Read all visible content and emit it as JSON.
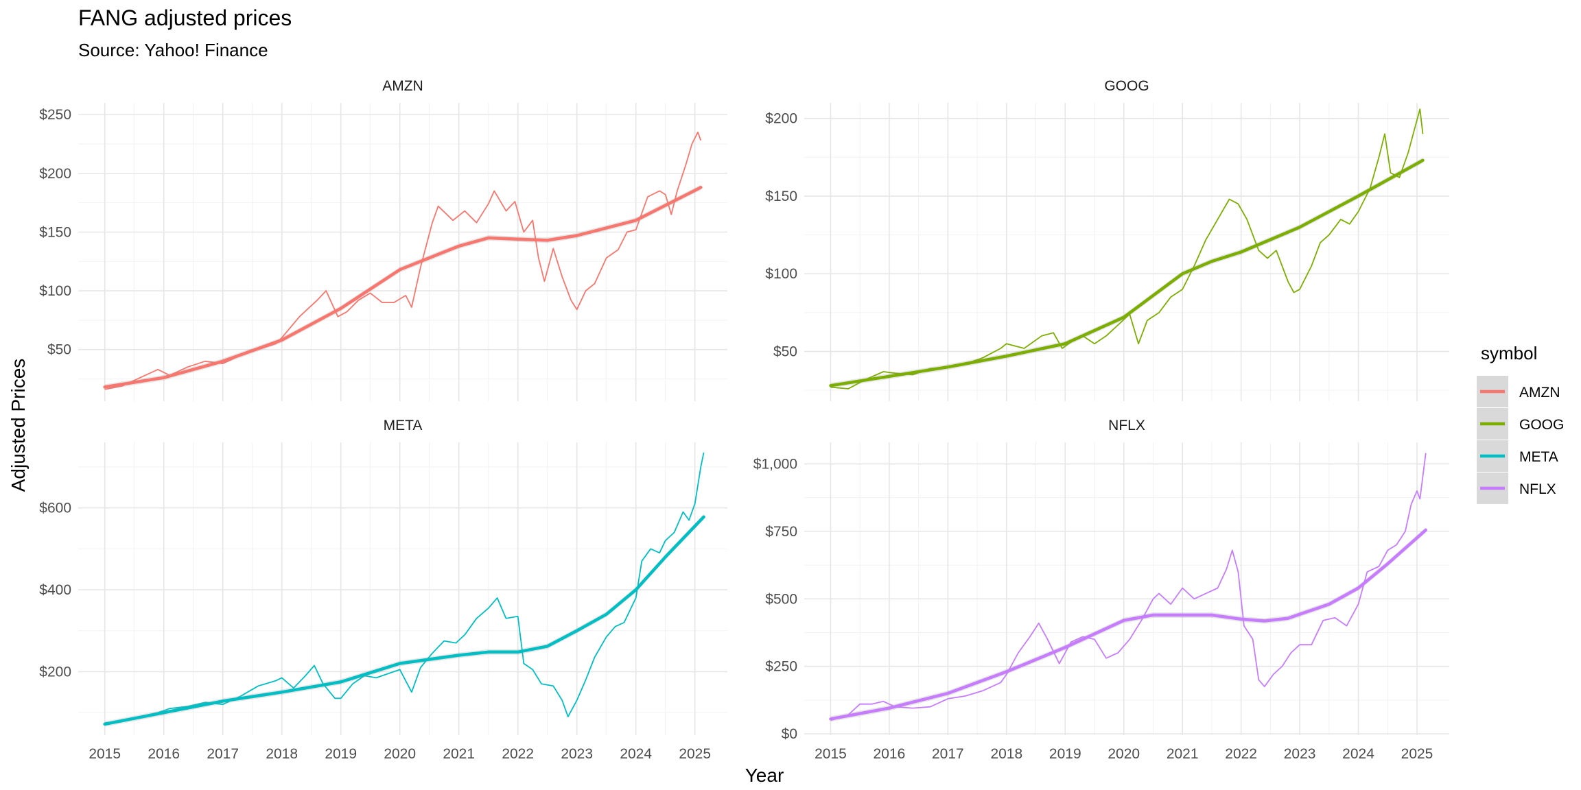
{
  "chart_data": {
    "type": "line",
    "title": "FANG adjusted prices",
    "subtitle": "Source: Yahoo! Finance",
    "xlabel": "Year",
    "ylabel": "Adjusted Prices",
    "legend": {
      "title": "symbol",
      "position": "right"
    },
    "grid": true,
    "x_ticks": [
      "2015",
      "2016",
      "2017",
      "2018",
      "2019",
      "2020",
      "2021",
      "2022",
      "2023",
      "2024",
      "2025"
    ],
    "xlim": [
      2014.55,
      2025.55
    ],
    "panels": [
      {
        "symbol": "AMZN",
        "color": "#F8766D",
        "ylim": [
          6,
          260
        ],
        "y_ticks": [
          50,
          100,
          150,
          200,
          250
        ],
        "y_tick_labels": [
          "$50",
          "$100",
          "$150",
          "$200",
          "$250"
        ],
        "price": [
          [
            2015.0,
            16
          ],
          [
            2015.3,
            19
          ],
          [
            2015.6,
            26
          ],
          [
            2015.9,
            33
          ],
          [
            2016.1,
            28
          ],
          [
            2016.4,
            35
          ],
          [
            2016.7,
            40
          ],
          [
            2017.0,
            38
          ],
          [
            2017.3,
            45
          ],
          [
            2017.6,
            50
          ],
          [
            2017.9,
            55
          ],
          [
            2018.0,
            60
          ],
          [
            2018.3,
            78
          ],
          [
            2018.6,
            92
          ],
          [
            2018.75,
            100
          ],
          [
            2018.95,
            78
          ],
          [
            2019.1,
            82
          ],
          [
            2019.3,
            92
          ],
          [
            2019.5,
            98
          ],
          [
            2019.7,
            90
          ],
          [
            2019.9,
            90
          ],
          [
            2020.1,
            96
          ],
          [
            2020.2,
            86
          ],
          [
            2020.35,
            120
          ],
          [
            2020.55,
            158
          ],
          [
            2020.65,
            172
          ],
          [
            2020.9,
            160
          ],
          [
            2021.1,
            168
          ],
          [
            2021.3,
            158
          ],
          [
            2021.5,
            174
          ],
          [
            2021.6,
            185
          ],
          [
            2021.8,
            168
          ],
          [
            2021.95,
            176
          ],
          [
            2022.1,
            150
          ],
          [
            2022.25,
            160
          ],
          [
            2022.35,
            128
          ],
          [
            2022.45,
            108
          ],
          [
            2022.6,
            136
          ],
          [
            2022.75,
            112
          ],
          [
            2022.9,
            92
          ],
          [
            2023.0,
            84
          ],
          [
            2023.15,
            100
          ],
          [
            2023.3,
            106
          ],
          [
            2023.5,
            128
          ],
          [
            2023.7,
            135
          ],
          [
            2023.85,
            150
          ],
          [
            2024.0,
            152
          ],
          [
            2024.2,
            180
          ],
          [
            2024.4,
            185
          ],
          [
            2024.5,
            182
          ],
          [
            2024.6,
            165
          ],
          [
            2024.7,
            185
          ],
          [
            2024.85,
            208
          ],
          [
            2024.95,
            225
          ],
          [
            2025.05,
            235
          ],
          [
            2025.1,
            228
          ]
        ],
        "trend": [
          [
            2015.0,
            18
          ],
          [
            2016.0,
            26
          ],
          [
            2017.0,
            40
          ],
          [
            2018.0,
            58
          ],
          [
            2019.0,
            85
          ],
          [
            2020.0,
            118
          ],
          [
            2021.0,
            138
          ],
          [
            2021.5,
            145
          ],
          [
            2022.0,
            144
          ],
          [
            2022.5,
            143
          ],
          [
            2023.0,
            147
          ],
          [
            2024.0,
            160
          ],
          [
            2025.1,
            188
          ]
        ]
      },
      {
        "symbol": "GOOG",
        "color": "#7CAE00",
        "ylim": [
          18,
          210
        ],
        "y_ticks": [
          50,
          100,
          150,
          200
        ],
        "y_tick_labels": [
          "$50",
          "$100",
          "$150",
          "$200"
        ],
        "price": [
          [
            2015.0,
            27
          ],
          [
            2015.3,
            26
          ],
          [
            2015.6,
            32
          ],
          [
            2015.9,
            37
          ],
          [
            2016.1,
            36
          ],
          [
            2016.4,
            35
          ],
          [
            2016.7,
            39
          ],
          [
            2017.0,
            40
          ],
          [
            2017.3,
            42
          ],
          [
            2017.6,
            46
          ],
          [
            2017.9,
            52
          ],
          [
            2018.0,
            55
          ],
          [
            2018.3,
            52
          ],
          [
            2018.6,
            60
          ],
          [
            2018.8,
            62
          ],
          [
            2018.95,
            52
          ],
          [
            2019.1,
            56
          ],
          [
            2019.3,
            60
          ],
          [
            2019.5,
            55
          ],
          [
            2019.7,
            60
          ],
          [
            2019.9,
            67
          ],
          [
            2020.1,
            74
          ],
          [
            2020.25,
            55
          ],
          [
            2020.4,
            70
          ],
          [
            2020.6,
            75
          ],
          [
            2020.8,
            85
          ],
          [
            2021.0,
            90
          ],
          [
            2021.2,
            105
          ],
          [
            2021.4,
            122
          ],
          [
            2021.6,
            135
          ],
          [
            2021.8,
            148
          ],
          [
            2021.95,
            145
          ],
          [
            2022.1,
            135
          ],
          [
            2022.3,
            115
          ],
          [
            2022.45,
            110
          ],
          [
            2022.6,
            115
          ],
          [
            2022.8,
            95
          ],
          [
            2022.9,
            88
          ],
          [
            2023.0,
            90
          ],
          [
            2023.2,
            105
          ],
          [
            2023.35,
            120
          ],
          [
            2023.5,
            125
          ],
          [
            2023.7,
            135
          ],
          [
            2023.85,
            132
          ],
          [
            2024.0,
            140
          ],
          [
            2024.2,
            155
          ],
          [
            2024.35,
            175
          ],
          [
            2024.45,
            190
          ],
          [
            2024.55,
            165
          ],
          [
            2024.7,
            162
          ],
          [
            2024.85,
            178
          ],
          [
            2024.95,
            192
          ],
          [
            2025.05,
            206
          ],
          [
            2025.1,
            190
          ]
        ],
        "trend": [
          [
            2015.0,
            28
          ],
          [
            2016.0,
            34
          ],
          [
            2017.0,
            40
          ],
          [
            2018.0,
            47
          ],
          [
            2019.0,
            55
          ],
          [
            2020.0,
            72
          ],
          [
            2021.0,
            100
          ],
          [
            2021.5,
            108
          ],
          [
            2022.0,
            114
          ],
          [
            2023.0,
            130
          ],
          [
            2024.0,
            150
          ],
          [
            2025.1,
            173
          ]
        ]
      },
      {
        "symbol": "META",
        "color": "#00BFC4",
        "ylim": [
          45,
          760
        ],
        "y_ticks": [
          200,
          400,
          600
        ],
        "y_tick_labels": [
          "$200",
          "$400",
          "$600"
        ],
        "price": [
          [
            2015.0,
            75
          ],
          [
            2015.3,
            80
          ],
          [
            2015.6,
            90
          ],
          [
            2015.9,
            100
          ],
          [
            2016.1,
            110
          ],
          [
            2016.4,
            115
          ],
          [
            2016.7,
            125
          ],
          [
            2017.0,
            120
          ],
          [
            2017.3,
            140
          ],
          [
            2017.6,
            165
          ],
          [
            2017.9,
            178
          ],
          [
            2018.0,
            185
          ],
          [
            2018.2,
            160
          ],
          [
            2018.4,
            190
          ],
          [
            2018.55,
            215
          ],
          [
            2018.7,
            170
          ],
          [
            2018.9,
            135
          ],
          [
            2019.0,
            135
          ],
          [
            2019.2,
            170
          ],
          [
            2019.4,
            190
          ],
          [
            2019.6,
            185
          ],
          [
            2019.8,
            195
          ],
          [
            2020.0,
            205
          ],
          [
            2020.2,
            150
          ],
          [
            2020.35,
            210
          ],
          [
            2020.55,
            245
          ],
          [
            2020.75,
            275
          ],
          [
            2020.95,
            270
          ],
          [
            2021.1,
            290
          ],
          [
            2021.3,
            330
          ],
          [
            2021.5,
            355
          ],
          [
            2021.65,
            380
          ],
          [
            2021.8,
            330
          ],
          [
            2022.0,
            335
          ],
          [
            2022.1,
            220
          ],
          [
            2022.25,
            205
          ],
          [
            2022.4,
            170
          ],
          [
            2022.6,
            165
          ],
          [
            2022.75,
            130
          ],
          [
            2022.85,
            90
          ],
          [
            2023.0,
            130
          ],
          [
            2023.15,
            180
          ],
          [
            2023.3,
            235
          ],
          [
            2023.5,
            285
          ],
          [
            2023.65,
            310
          ],
          [
            2023.8,
            320
          ],
          [
            2024.0,
            380
          ],
          [
            2024.1,
            470
          ],
          [
            2024.25,
            500
          ],
          [
            2024.4,
            490
          ],
          [
            2024.5,
            520
          ],
          [
            2024.65,
            540
          ],
          [
            2024.8,
            590
          ],
          [
            2024.9,
            570
          ],
          [
            2025.0,
            610
          ],
          [
            2025.1,
            700
          ],
          [
            2025.15,
            735
          ]
        ],
        "trend": [
          [
            2015.0,
            72
          ],
          [
            2016.0,
            100
          ],
          [
            2017.0,
            128
          ],
          [
            2018.0,
            150
          ],
          [
            2019.0,
            175
          ],
          [
            2020.0,
            220
          ],
          [
            2021.0,
            240
          ],
          [
            2021.5,
            248
          ],
          [
            2022.0,
            248
          ],
          [
            2022.5,
            262
          ],
          [
            2023.0,
            300
          ],
          [
            2023.5,
            340
          ],
          [
            2024.0,
            400
          ],
          [
            2024.5,
            480
          ],
          [
            2025.15,
            578
          ]
        ],
        "ribbon_halfwidth": 6
      },
      {
        "symbol": "NFLX",
        "color": "#C77CFF",
        "ylim": [
          -5,
          1080
        ],
        "y_ticks": [
          0,
          250,
          500,
          750,
          1000
        ],
        "y_tick_labels": [
          "$0",
          "$250",
          "$500",
          "$750",
          "$1,000"
        ],
        "price": [
          [
            2015.0,
            50
          ],
          [
            2015.3,
            70
          ],
          [
            2015.5,
            110
          ],
          [
            2015.7,
            110
          ],
          [
            2015.9,
            120
          ],
          [
            2016.1,
            100
          ],
          [
            2016.4,
            95
          ],
          [
            2016.7,
            100
          ],
          [
            2017.0,
            130
          ],
          [
            2017.3,
            140
          ],
          [
            2017.6,
            160
          ],
          [
            2017.9,
            190
          ],
          [
            2018.0,
            220
          ],
          [
            2018.2,
            300
          ],
          [
            2018.4,
            360
          ],
          [
            2018.55,
            410
          ],
          [
            2018.7,
            350
          ],
          [
            2018.9,
            260
          ],
          [
            2019.1,
            340
          ],
          [
            2019.3,
            360
          ],
          [
            2019.5,
            350
          ],
          [
            2019.7,
            280
          ],
          [
            2019.9,
            300
          ],
          [
            2020.1,
            350
          ],
          [
            2020.3,
            420
          ],
          [
            2020.5,
            500
          ],
          [
            2020.6,
            520
          ],
          [
            2020.8,
            480
          ],
          [
            2021.0,
            540
          ],
          [
            2021.2,
            500
          ],
          [
            2021.4,
            520
          ],
          [
            2021.6,
            540
          ],
          [
            2021.75,
            610
          ],
          [
            2021.85,
            680
          ],
          [
            2021.95,
            600
          ],
          [
            2022.05,
            400
          ],
          [
            2022.2,
            350
          ],
          [
            2022.3,
            200
          ],
          [
            2022.4,
            175
          ],
          [
            2022.55,
            220
          ],
          [
            2022.7,
            250
          ],
          [
            2022.85,
            300
          ],
          [
            2023.0,
            330
          ],
          [
            2023.2,
            330
          ],
          [
            2023.4,
            420
          ],
          [
            2023.6,
            430
          ],
          [
            2023.8,
            400
          ],
          [
            2024.0,
            480
          ],
          [
            2024.15,
            600
          ],
          [
            2024.35,
            620
          ],
          [
            2024.5,
            680
          ],
          [
            2024.65,
            700
          ],
          [
            2024.8,
            750
          ],
          [
            2024.9,
            850
          ],
          [
            2025.0,
            900
          ],
          [
            2025.05,
            870
          ],
          [
            2025.15,
            1040
          ]
        ],
        "trend": [
          [
            2015.0,
            55
          ],
          [
            2016.0,
            95
          ],
          [
            2017.0,
            150
          ],
          [
            2018.0,
            230
          ],
          [
            2019.0,
            320
          ],
          [
            2020.0,
            420
          ],
          [
            2020.5,
            440
          ],
          [
            2021.0,
            440
          ],
          [
            2021.5,
            440
          ],
          [
            2022.0,
            425
          ],
          [
            2022.4,
            418
          ],
          [
            2022.8,
            428
          ],
          [
            2023.5,
            480
          ],
          [
            2024.0,
            540
          ],
          [
            2024.5,
            630
          ],
          [
            2025.15,
            755
          ]
        ]
      }
    ]
  }
}
